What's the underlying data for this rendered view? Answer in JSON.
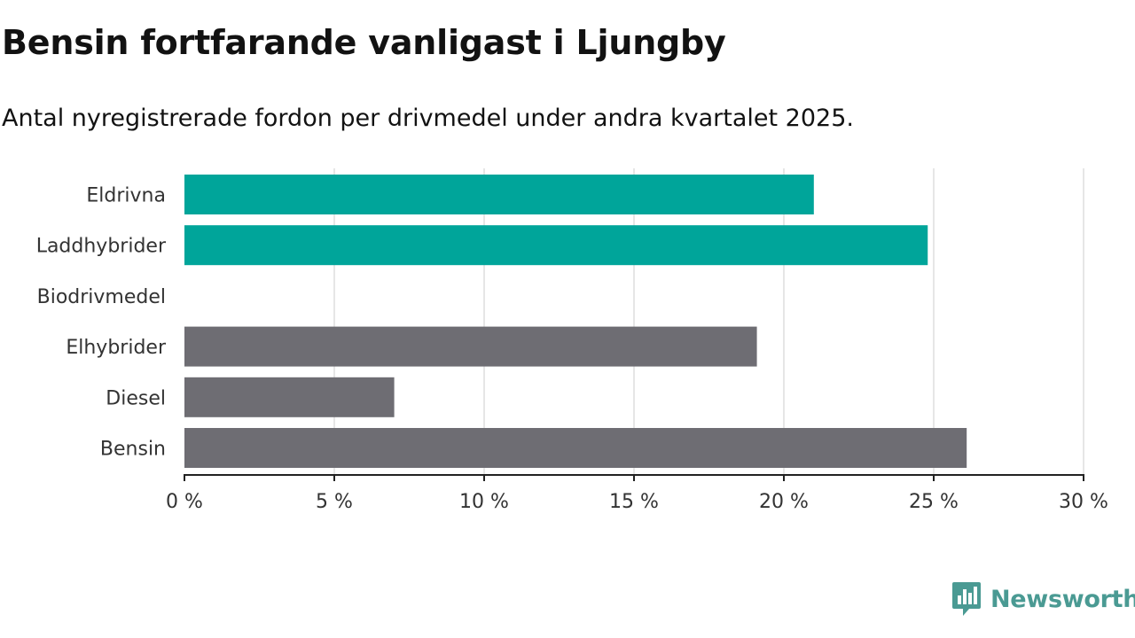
{
  "header": {
    "title": "Bensin fortfarande vanligast i Ljungby",
    "subtitle": "Antal nyregistrerade fordon per drivmedel under andra kvartalet 2025."
  },
  "chart_data": {
    "type": "bar",
    "orientation": "horizontal",
    "categories": [
      "Eldrivna",
      "Laddhybrider",
      "Biodrivmedel",
      "Elhybrider",
      "Diesel",
      "Bensin"
    ],
    "values": [
      21.0,
      24.8,
      0,
      19.1,
      7.0,
      26.1
    ],
    "colors": [
      "#00a59a",
      "#00a59a",
      "#00a59a",
      "#6e6d73",
      "#6e6d73",
      "#6e6d73"
    ],
    "xlim": [
      0,
      30
    ],
    "xticks": [
      0,
      5,
      10,
      15,
      20,
      25,
      30
    ],
    "tick_labels": [
      "0 %",
      "5 %",
      "10 %",
      "15 %",
      "20 %",
      "25 %",
      "30 %"
    ],
    "grid": true
  },
  "brand": {
    "name": "Newsworthy",
    "color": "#4a9a93",
    "icon": "newsworthy-logo-icon"
  }
}
